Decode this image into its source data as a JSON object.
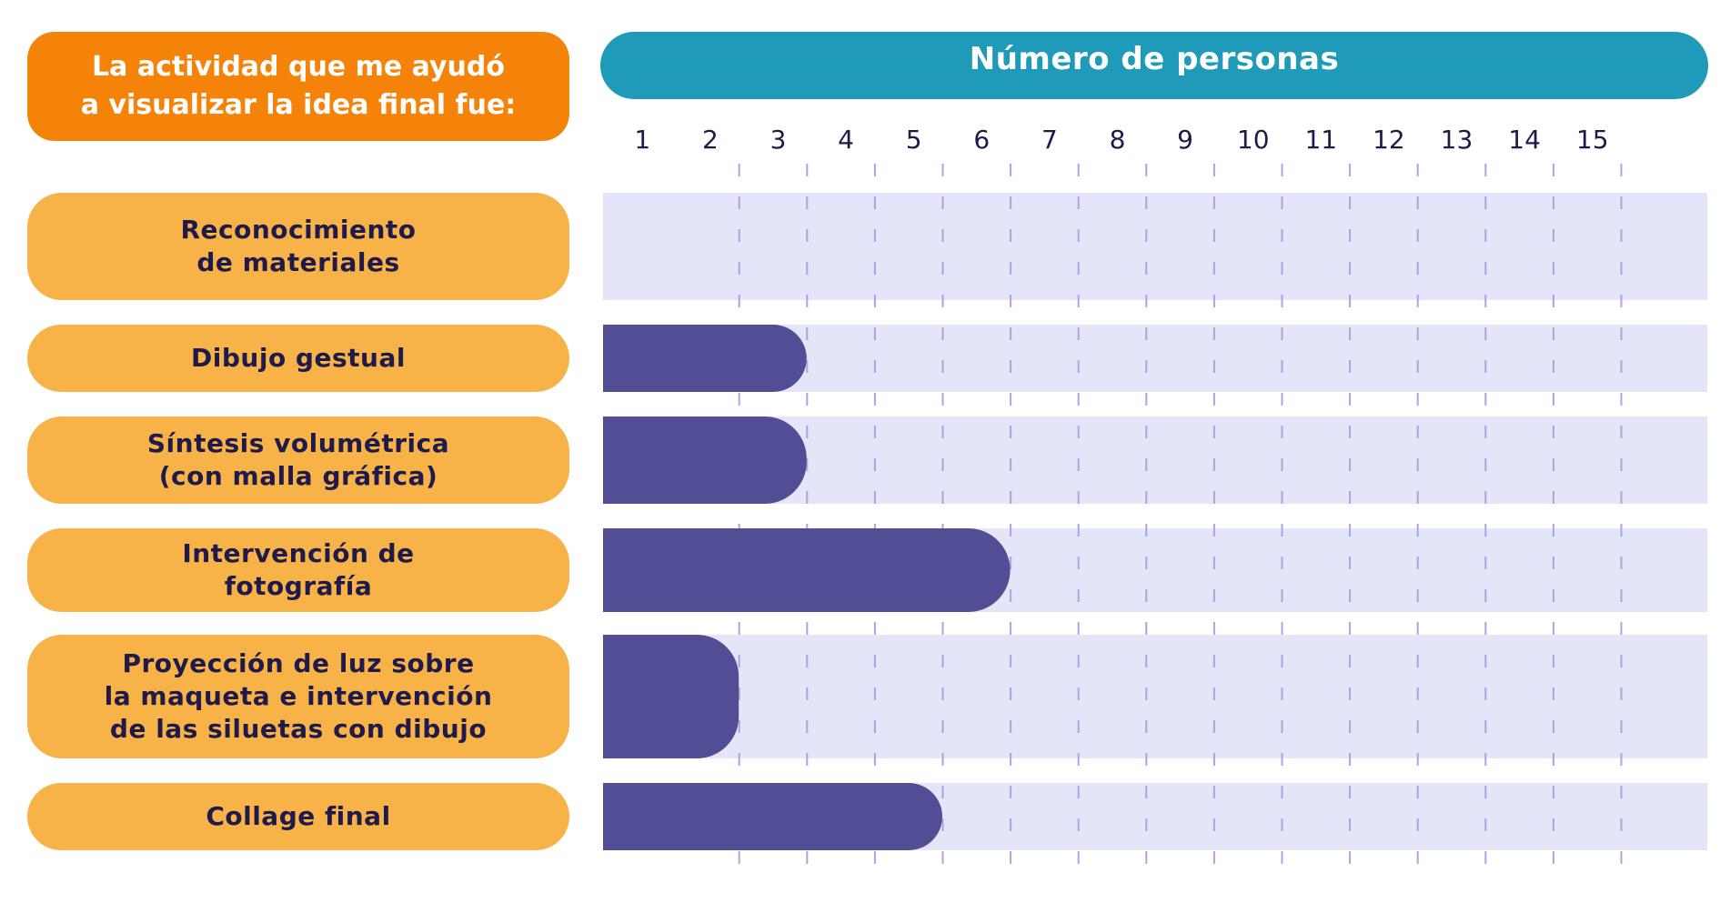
{
  "title": "La actividad que me ayudó\na visualizar la idea final  fue:",
  "colors": {
    "title_bg": "#f5830a",
    "header_bg": "#1f9bb9",
    "category_bg": "#f7b348",
    "category_text": "#1f1a4a",
    "track_bg": "#e5e5fa",
    "bar": "#514e96",
    "tick": "#a7a6e4",
    "axis_text": "#1f1a4a"
  },
  "chart_data": {
    "type": "bar",
    "orientation": "horizontal",
    "title": "La actividad que me ayudó a visualizar la idea final  fue:",
    "xlabel": "Número de personas",
    "ylabel": "",
    "xlim": [
      0,
      16
    ],
    "xticks": [
      "1",
      "2",
      "3",
      "4",
      "5",
      "6",
      "7",
      "8",
      "9",
      "10",
      "11",
      "12",
      "13",
      "14",
      "15"
    ],
    "categories": [
      "Reconocimiento\nde materiales",
      "Dibujo gestual",
      "Síntesis volumétrica\n(con malla gráfica)",
      "Intervención de\nfotografía",
      "Proyección de luz sobre\nla maqueta e intervención\nde las siluetas con dibujo",
      "Collage final"
    ],
    "values": [
      0,
      3,
      3,
      6,
      2,
      5
    ],
    "grid": true
  }
}
